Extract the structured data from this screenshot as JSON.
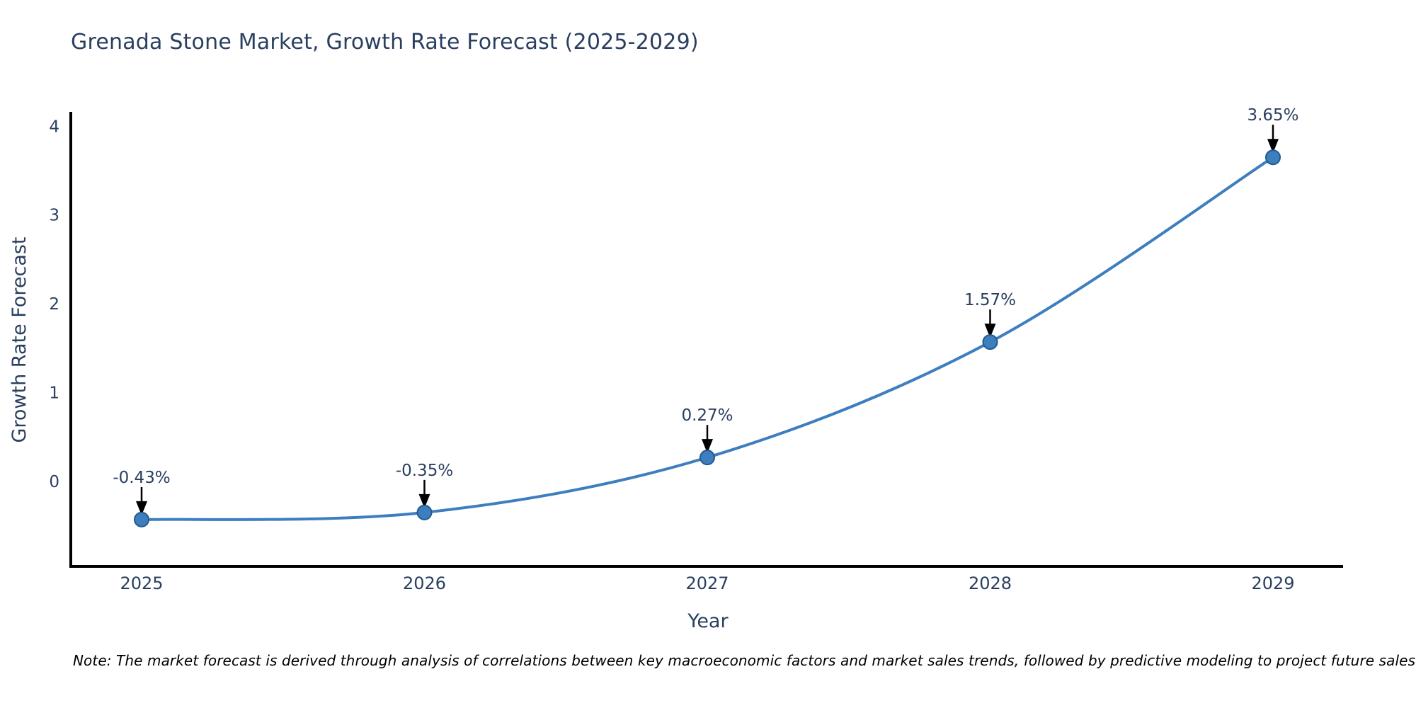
{
  "page": {
    "note": "Note: The market forecast is derived through analysis of correlations between key macroeconomic factors and market sales trends, followed by predictive modeling to project future sales."
  },
  "chart_data": {
    "type": "line",
    "title": "Grenada Stone Market, Growth Rate Forecast (2025-2029)",
    "xlabel": "Year",
    "ylabel": "Growth Rate Forecast",
    "categories": [
      "2025",
      "2026",
      "2027",
      "2028",
      "2029"
    ],
    "values": [
      -0.43,
      -0.35,
      0.27,
      1.57,
      3.65
    ],
    "point_labels": [
      "-0.43%",
      "-0.35%",
      "0.27%",
      "1.57%",
      "3.65%"
    ],
    "yticks": [
      0,
      1,
      2,
      3,
      4
    ],
    "ylim": [
      -0.957,
      4.162
    ],
    "grid": false,
    "legend": false,
    "line_shape": "spline",
    "colors": {
      "line": "#3d7ebf",
      "marker": "#3d7ebf",
      "marker_border": "#245a8c",
      "text": "#2a3f5f",
      "annotation_arrow": "#000000",
      "spine": "#000000"
    }
  }
}
